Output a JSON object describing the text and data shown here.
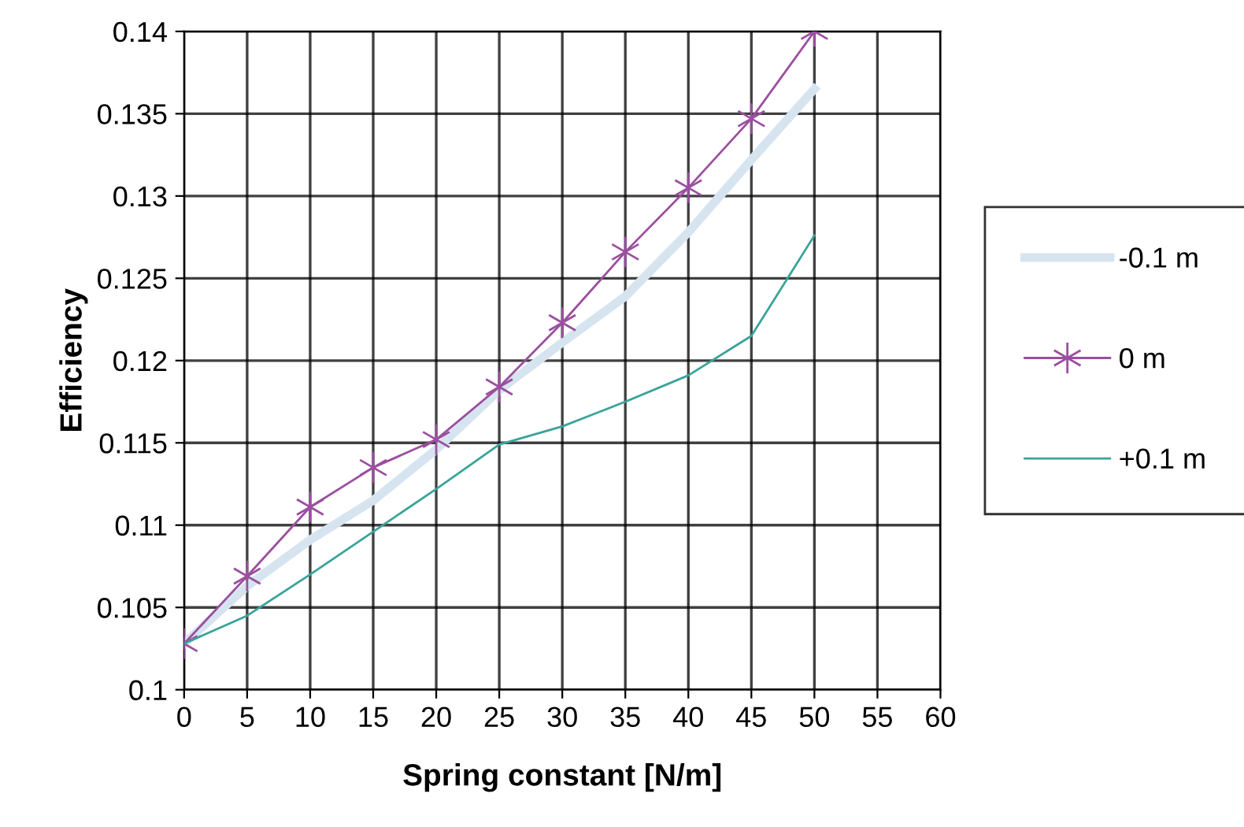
{
  "chart_data": {
    "type": "line",
    "xlabel": "Spring constant [N/m]",
    "ylabel": "Efficiency",
    "x": [
      0,
      5,
      10,
      15,
      20,
      25,
      30,
      35,
      40,
      45,
      50
    ],
    "series": [
      {
        "name": "-0.1 m",
        "color": "#d6e4f0",
        "marker": "none",
        "values": [
          0.1028,
          0.1063,
          0.1091,
          0.1115,
          0.1146,
          0.1182,
          0.1211,
          0.1239,
          0.1278,
          0.1322,
          0.1365
        ]
      },
      {
        "name": "0 m",
        "color": "#9b4f9f",
        "marker": "cross",
        "values": [
          0.1028,
          0.1069,
          0.1111,
          0.1135,
          0.1152,
          0.1184,
          0.1223,
          0.1266,
          0.1305,
          0.1347,
          0.14
        ]
      },
      {
        "name": "+0.1 m",
        "color": "#3aa39a",
        "marker": "none",
        "values": [
          0.1028,
          0.1045,
          0.107,
          0.1096,
          0.1122,
          0.1149,
          0.116,
          0.1175,
          0.1191,
          0.1215,
          0.1276
        ]
      }
    ],
    "xlim": [
      0,
      60
    ],
    "xticks": [
      0,
      5,
      10,
      15,
      20,
      25,
      30,
      35,
      40,
      45,
      50,
      55,
      60
    ],
    "ylim": [
      0.1,
      0.14
    ],
    "yticks": [
      0.1,
      0.105,
      0.11,
      0.115,
      0.12,
      0.125,
      0.13,
      0.135,
      0.14
    ],
    "grid": true,
    "legend": "right",
    "line_style": "solid"
  }
}
